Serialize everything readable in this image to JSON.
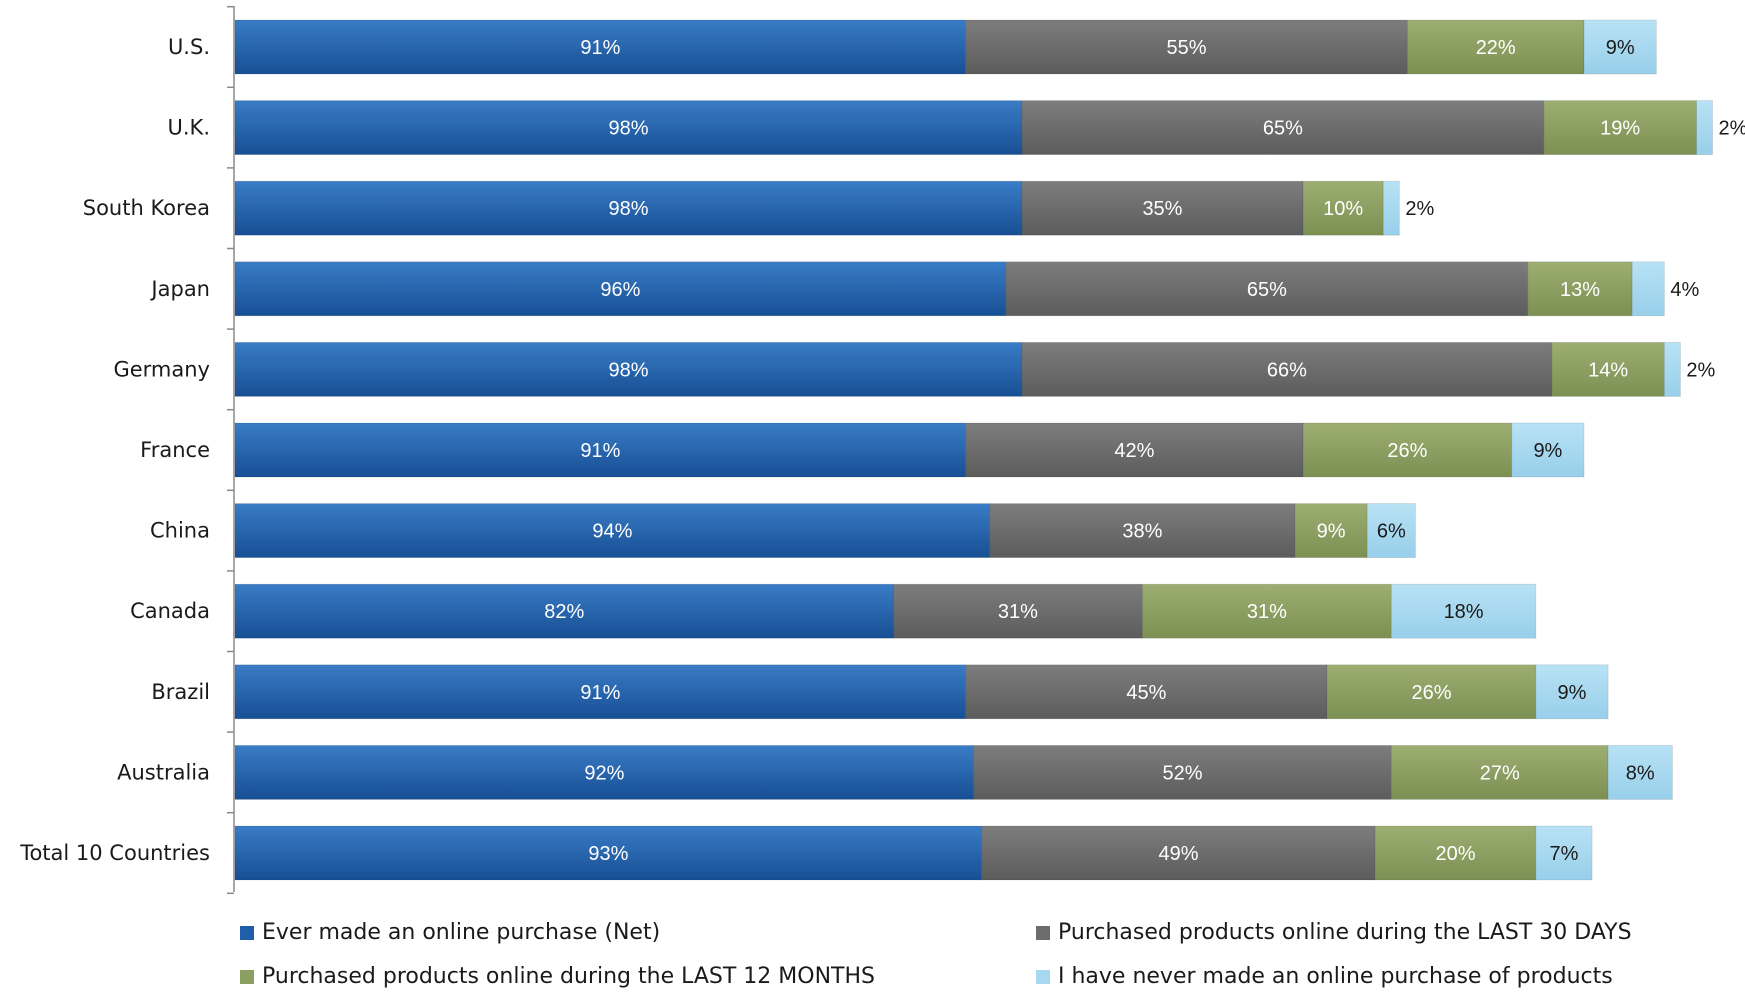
{
  "chart_data": {
    "type": "bar",
    "orientation": "horizontal",
    "stacked": true,
    "title": "",
    "xlabel": "",
    "ylabel": "",
    "categories": [
      "U.S.",
      "U.K.",
      "South Korea",
      "Japan",
      "Germany",
      "France",
      "China",
      "Canada",
      "Brazil",
      "Australia",
      "Total 10 Countries"
    ],
    "series": [
      {
        "name": "Ever made an online purchase (Net)",
        "color": "#1f5ea8",
        "values": [
          91,
          98,
          98,
          96,
          98,
          91,
          94,
          82,
          91,
          92,
          93
        ]
      },
      {
        "name": "Purchased products online during the LAST 30 DAYS",
        "color": "#6d6d6d",
        "values": [
          55,
          65,
          35,
          65,
          66,
          42,
          38,
          31,
          45,
          52,
          49
        ]
      },
      {
        "name": "Purchased products online during the LAST 12 MONTHS",
        "color": "#8c9f62",
        "values": [
          22,
          19,
          10,
          13,
          14,
          26,
          9,
          31,
          26,
          27,
          20
        ]
      },
      {
        "name": "I have never made an online purchase of products",
        "color": "#a6d8f0",
        "values": [
          9,
          2,
          2,
          4,
          2,
          9,
          6,
          18,
          9,
          8,
          7
        ]
      }
    ],
    "value_suffix": "%",
    "legend_position": "bottom",
    "grid": false
  }
}
